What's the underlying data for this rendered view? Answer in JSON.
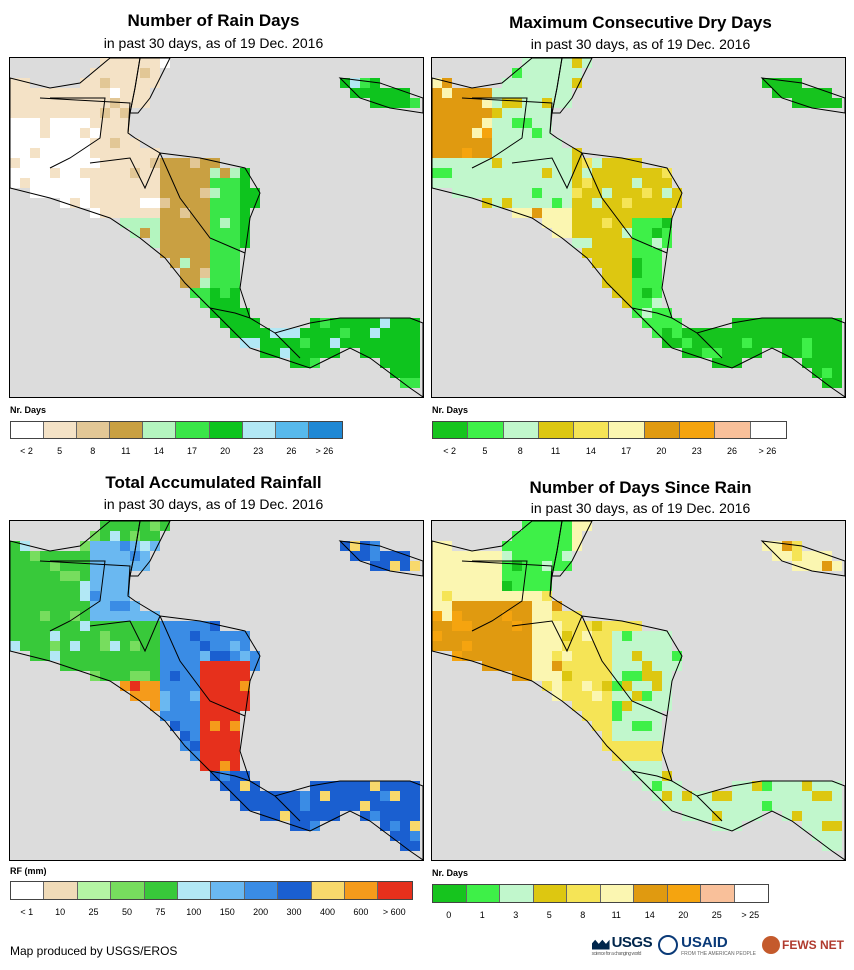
{
  "panels": [
    {
      "id": "rain-days",
      "title": "Number of Rain Days",
      "subtitle": "in past 30 days, as of 19 Dec. 2016",
      "legend_title": "Nr. Days",
      "legend_colors": [
        "#ffffff",
        "#f4e2c6",
        "#e2c796",
        "#c9a042",
        "#b4f5bf",
        "#3ae648",
        "#0ec41e",
        "#b2e8f5",
        "#57b9ec",
        "#1f88d4"
      ],
      "legend_labels": [
        "< 2",
        "5",
        "8",
        "11",
        "14",
        "17",
        "20",
        "23",
        "26",
        "> 26"
      ],
      "map": {
        "base": "#e6d3ad",
        "zones": [
          {
            "name": "mexico-south",
            "color": "#f4e2c6"
          },
          {
            "name": "guatemala-lowlands",
            "color": "#ffffff"
          },
          {
            "name": "honduras",
            "color": "#c9a042"
          },
          {
            "name": "atlantic-coast",
            "color": "#3ae648"
          },
          {
            "name": "costa-rica-panama",
            "color": "#0ec41e"
          },
          {
            "name": "pacific-rim",
            "color": "#b4f5bf"
          }
        ]
      }
    },
    {
      "id": "dry-days",
      "title": "Maximum Consecutive Dry Days",
      "subtitle": "in past 30 days, as of 19 Dec. 2016",
      "legend_title": "Nr. Days",
      "legend_colors": [
        "#16c41e",
        "#3ef048",
        "#c1f7cc",
        "#ddc711",
        "#f5e456",
        "#fbf6b1",
        "#e09a10",
        "#f5a40f",
        "#f9c09a",
        "#ffffff"
      ],
      "legend_labels": [
        "< 2",
        "5",
        "8",
        "11",
        "14",
        "17",
        "20",
        "23",
        "26",
        "> 26"
      ],
      "map": {
        "base": "#f5e456",
        "zones": [
          {
            "name": "yucatan",
            "color": "#e09a10"
          },
          {
            "name": "guatemala",
            "color": "#c1f7cc"
          },
          {
            "name": "honduras",
            "color": "#ddc711"
          },
          {
            "name": "atlantic-coast",
            "color": "#3ef048"
          },
          {
            "name": "costa-rica-panama",
            "color": "#16c41e"
          },
          {
            "name": "pacific-rim",
            "color": "#fbf6b1"
          }
        ]
      }
    },
    {
      "id": "rainfall",
      "title": "Total Accumulated Rainfall",
      "subtitle": "in past 30 days, as of 19 Dec. 2016",
      "legend_title": "RF (mm)",
      "legend_colors": [
        "#ffffff",
        "#f0dbb8",
        "#b4f5a4",
        "#77dd5e",
        "#38c93a",
        "#b2e8f5",
        "#6ab8f1",
        "#3a8ce5",
        "#1a5fd0",
        "#f8d96c",
        "#f59b1b",
        "#e6301c"
      ],
      "legend_labels": [
        "< 1",
        "10",
        "25",
        "50",
        "75",
        "100",
        "150",
        "200",
        "300",
        "400",
        "600",
        "> 600"
      ],
      "map": {
        "base": "#77dd5e",
        "zones": [
          {
            "name": "mexico-south",
            "color": "#38c93a"
          },
          {
            "name": "guatemala",
            "color": "#6ab8f1"
          },
          {
            "name": "honduras",
            "color": "#3a8ce5"
          },
          {
            "name": "nicaragua-coast",
            "color": "#e6301c"
          },
          {
            "name": "costa-rica-panama",
            "color": "#1a5fd0"
          },
          {
            "name": "pacific-rim",
            "color": "#f59b1b"
          }
        ]
      }
    },
    {
      "id": "days-since-rain",
      "title": "Number of Days Since Rain",
      "subtitle": "in past 30 days, as of 19 Dec. 2016",
      "legend_title": "Nr. Days",
      "legend_colors": [
        "#16c41e",
        "#3ef048",
        "#c1f7cc",
        "#ddc711",
        "#f5e456",
        "#fbf6b1",
        "#e09a10",
        "#f5a40f",
        "#f9c09a",
        "#ffffff"
      ],
      "legend_labels": [
        "0",
        "1",
        "3",
        "5",
        "8",
        "11",
        "14",
        "20",
        "25",
        "> 25"
      ],
      "map": {
        "base": "#ddc711",
        "zones": [
          {
            "name": "yucatan",
            "color": "#3ef048"
          },
          {
            "name": "guatemala",
            "color": "#e09a10"
          },
          {
            "name": "honduras",
            "color": "#f5e456"
          },
          {
            "name": "nicaragua",
            "color": "#c1f7cc"
          },
          {
            "name": "costa-rica-panama",
            "color": "#c1f7cc"
          },
          {
            "name": "pacific-rim",
            "color": "#fbf6b1"
          }
        ]
      }
    }
  ],
  "credit": "Map produced by USGS/EROS",
  "logos": {
    "usgs": "USGS",
    "usgs_tag": "science for a changing world",
    "usaid": "USAID",
    "usaid_tag": "FROM THE AMERICAN PEOPLE",
    "fews": "FEWS NET"
  },
  "colors": {
    "ocean": "#dcdcdc",
    "border": "#000000"
  }
}
